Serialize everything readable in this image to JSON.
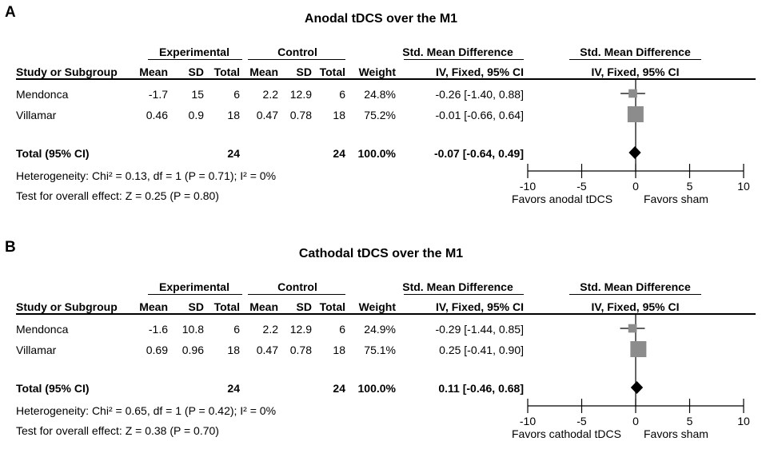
{
  "chart_data": [
    {
      "type": "forest",
      "letter": "A",
      "title": "Anodal tDCS over the M1",
      "header": {
        "group_experimental": "Experimental",
        "group_control": "Control",
        "effect_group": "Std. Mean Difference",
        "plot_group": "Std. Mean Difference",
        "study": "Study or Subgroup",
        "mean": "Mean",
        "sd": "SD",
        "total": "Total",
        "weight": "Weight",
        "effect_sub": "IV, Fixed, 95% CI",
        "plot_sub": "IV, Fixed, 95% CI"
      },
      "studies": [
        {
          "name": "Mendonca",
          "exp_mean": "-1.7",
          "exp_sd": "15",
          "exp_total": "6",
          "ctl_mean": "2.2",
          "ctl_sd": "12.9",
          "ctl_total": "6",
          "weight": "24.8%",
          "ci_text": "-0.26 [-1.40, 0.88]",
          "estimate": -0.26,
          "lower": -1.4,
          "upper": 0.88,
          "weight_value": 24.8
        },
        {
          "name": "Villamar",
          "exp_mean": "0.46",
          "exp_sd": "0.9",
          "exp_total": "18",
          "ctl_mean": "0.47",
          "ctl_sd": "0.78",
          "ctl_total": "18",
          "weight": "75.2%",
          "ci_text": "-0.01 [-0.66, 0.64]",
          "estimate": -0.01,
          "lower": -0.66,
          "upper": 0.64,
          "weight_value": 75.2
        }
      ],
      "total": {
        "label": "Total (95% CI)",
        "exp_total": "24",
        "ctl_total": "24",
        "weight": "100.0%",
        "ci_text": "-0.07 [-0.64, 0.49]",
        "estimate": -0.07,
        "lower": -0.64,
        "upper": 0.49
      },
      "heterogeneity": "Heterogeneity: Chi² = 0.13, df = 1 (P = 0.71); I² = 0%",
      "overall_effect": "Test for overall effect: Z = 0.25 (P = 0.80)",
      "x_ticks": [
        -10,
        -5,
        0,
        5,
        10
      ],
      "x_tick_labels": [
        "-10",
        "-5",
        "0",
        "5",
        "10"
      ],
      "xlim": [
        -10,
        10
      ],
      "favors_left": "Favors anodal tDCS",
      "favors_right": "Favors sham"
    },
    {
      "type": "forest",
      "letter": "B",
      "title": "Cathodal tDCS over the M1",
      "header": {
        "group_experimental": "Experimental",
        "group_control": "Control",
        "effect_group": "Std. Mean Difference",
        "plot_group": "Std. Mean Difference",
        "study": "Study or Subgroup",
        "mean": "Mean",
        "sd": "SD",
        "total": "Total",
        "weight": "Weight",
        "effect_sub": "IV, Fixed, 95% CI",
        "plot_sub": "IV, Fixed, 95% CI"
      },
      "studies": [
        {
          "name": "Mendonca",
          "exp_mean": "-1.6",
          "exp_sd": "10.8",
          "exp_total": "6",
          "ctl_mean": "2.2",
          "ctl_sd": "12.9",
          "ctl_total": "6",
          "weight": "24.9%",
          "ci_text": "-0.29 [-1.44, 0.85]",
          "estimate": -0.29,
          "lower": -1.44,
          "upper": 0.85,
          "weight_value": 24.9
        },
        {
          "name": "Villamar",
          "exp_mean": "0.69",
          "exp_sd": "0.96",
          "exp_total": "18",
          "ctl_mean": "0.47",
          "ctl_sd": "0.78",
          "ctl_total": "18",
          "weight": "75.1%",
          "ci_text": "0.25 [-0.41, 0.90]",
          "estimate": 0.25,
          "lower": -0.41,
          "upper": 0.9,
          "weight_value": 75.1
        }
      ],
      "total": {
        "label": "Total (95% CI)",
        "exp_total": "24",
        "ctl_total": "24",
        "weight": "100.0%",
        "ci_text": "0.11 [-0.46, 0.68]",
        "estimate": 0.11,
        "lower": -0.46,
        "upper": 0.68
      },
      "heterogeneity": "Heterogeneity: Chi² = 0.65, df = 1 (P = 0.42); I² = 0%",
      "overall_effect": "Test for overall effect: Z = 0.38 (P = 0.70)",
      "x_ticks": [
        -10,
        -5,
        0,
        5,
        10
      ],
      "x_tick_labels": [
        "-10",
        "-5",
        "0",
        "5",
        "10"
      ],
      "xlim": [
        -10,
        10
      ],
      "favors_left": "Favors cathodal tDCS",
      "favors_right": "Favors sham"
    }
  ]
}
